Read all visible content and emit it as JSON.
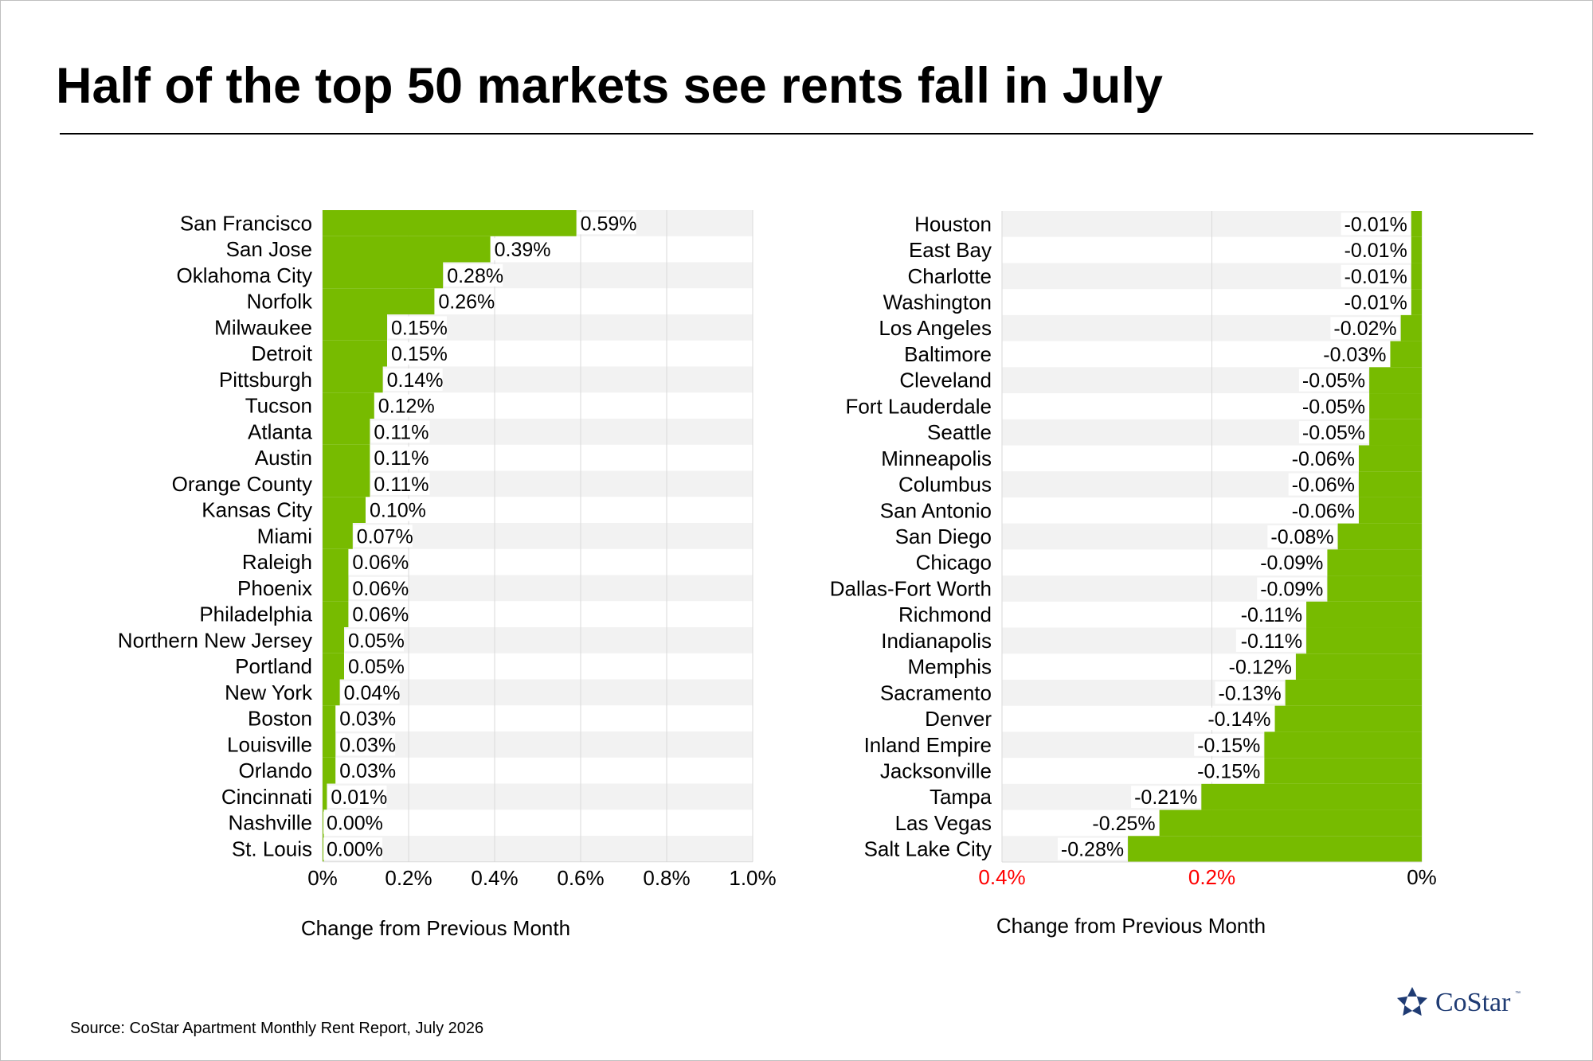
{
  "title": "Half of the top 50 markets see rents fall in July",
  "source": "Source: CoStar Apartment Monthly Rent Report, July 2026",
  "logo": {
    "name": "CoStar",
    "tm": "™",
    "color": "#1f3b73"
  },
  "colors": {
    "bar": "#77bb00",
    "band": "#f2f2f2",
    "grid": "#d9d9d9",
    "negative_tick": "#ff0000"
  },
  "chart_data": [
    {
      "type": "bar",
      "orientation": "horizontal",
      "xlabel": "Change from Previous Month",
      "xlim": [
        0,
        1.0
      ],
      "ticks": [
        {
          "value": 0,
          "label": "0%"
        },
        {
          "value": 0.2,
          "label": "0.2%"
        },
        {
          "value": 0.4,
          "label": "0.4%"
        },
        {
          "value": 0.6,
          "label": "0.6%"
        },
        {
          "value": 0.8,
          "label": "0.8%"
        },
        {
          "value": 1.0,
          "label": "1.0%"
        }
      ],
      "categories": [
        "San Francisco",
        "San Jose",
        "Oklahoma City",
        "Norfolk",
        "Milwaukee",
        "Detroit",
        "Pittsburgh",
        "Tucson",
        "Atlanta",
        "Austin",
        "Orange County",
        "Kansas City",
        "Miami",
        "Raleigh",
        "Phoenix",
        "Philadelphia",
        "Northern New Jersey",
        "Portland",
        "New York",
        "Boston",
        "Louisville",
        "Orlando",
        "Cincinnati",
        "Nashville",
        "St. Louis"
      ],
      "values": [
        0.59,
        0.39,
        0.28,
        0.26,
        0.15,
        0.15,
        0.14,
        0.12,
        0.11,
        0.11,
        0.11,
        0.1,
        0.07,
        0.06,
        0.06,
        0.06,
        0.05,
        0.05,
        0.04,
        0.03,
        0.03,
        0.03,
        0.01,
        0.0,
        0.0
      ],
      "labels": [
        "0.59%",
        "0.39%",
        "0.28%",
        "0.26%",
        "0.15%",
        "0.15%",
        "0.14%",
        "0.12%",
        "0.11%",
        "0.11%",
        "0.11%",
        "0.10%",
        "0.07%",
        "0.06%",
        "0.06%",
        "0.06%",
        "0.05%",
        "0.05%",
        "0.04%",
        "0.03%",
        "0.03%",
        "0.03%",
        "0.01%",
        "0.00%",
        "0.00%"
      ]
    },
    {
      "type": "bar",
      "orientation": "horizontal",
      "xlabel": "Change from Previous Month",
      "xlim": [
        -0.4,
        0
      ],
      "ticks": [
        {
          "value": -0.4,
          "label": "0.4%"
        },
        {
          "value": -0.2,
          "label": "0.2%"
        },
        {
          "value": 0,
          "label": "0%"
        }
      ],
      "categories": [
        "Houston",
        "East Bay",
        "Charlotte",
        "Washington",
        "Los Angeles",
        "Baltimore",
        "Cleveland",
        "Fort Lauderdale",
        "Seattle",
        "Minneapolis",
        "Columbus",
        "San Antonio",
        "San Diego",
        "Chicago",
        "Dallas-Fort Worth",
        "Richmond",
        "Indianapolis",
        "Memphis",
        "Sacramento",
        "Denver",
        "Inland Empire",
        "Jacksonville",
        "Tampa",
        "Las Vegas",
        "Salt Lake City"
      ],
      "values": [
        -0.01,
        -0.01,
        -0.01,
        -0.01,
        -0.02,
        -0.03,
        -0.05,
        -0.05,
        -0.05,
        -0.06,
        -0.06,
        -0.06,
        -0.08,
        -0.09,
        -0.09,
        -0.11,
        -0.11,
        -0.12,
        -0.13,
        -0.14,
        -0.15,
        -0.15,
        -0.21,
        -0.25,
        -0.28
      ],
      "labels": [
        "-0.01%",
        "-0.01%",
        "-0.01%",
        "-0.01%",
        "-0.02%",
        "-0.03%",
        "-0.05%",
        "-0.05%",
        "-0.05%",
        "-0.06%",
        "-0.06%",
        "-0.06%",
        "-0.08%",
        "-0.09%",
        "-0.09%",
        "-0.11%",
        "-0.11%",
        "-0.12%",
        "-0.13%",
        "-0.14%",
        "-0.15%",
        "-0.15%",
        "-0.21%",
        "-0.25%",
        "-0.28%"
      ]
    }
  ]
}
